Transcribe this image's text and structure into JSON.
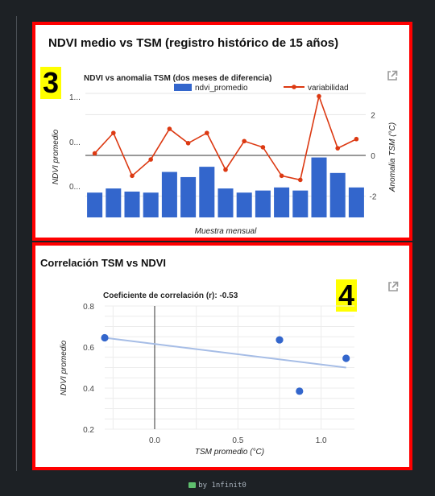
{
  "panel3": {
    "title": "NDVI medio vs TSM (registro histórico de 15 años)",
    "badge": "3"
  },
  "panel4": {
    "title": "Correlación TSM vs NDVI",
    "badge": "4"
  },
  "footer": {
    "text": "by 1nfinit0"
  },
  "colors": {
    "bar": "#3366cc",
    "line": "#dc3912",
    "frame": "#ff0000",
    "trend": "#a6bde6"
  },
  "chart_data": [
    {
      "type": "bar+line",
      "title": "NDVI vs anomalia TSM (dos meses de diferencia)",
      "xlabel": "Muestra mensual",
      "ylabel": "NDVI promedio",
      "y2label": "Anomalia TSM (°C)",
      "left_ticks": [
        "1...",
        "0...",
        "0..."
      ],
      "right_ticks": [
        2,
        0,
        -2
      ],
      "y2lim": [
        -3,
        3
      ],
      "legend_position": "top",
      "series": [
        {
          "name": "ndvi_promedio",
          "kind": "bar",
          "values": [
            0.52,
            0.54,
            0.525,
            0.52,
            0.62,
            0.595,
            0.645,
            0.54,
            0.52,
            0.53,
            0.545,
            0.53,
            0.69,
            0.615,
            0.545
          ]
        },
        {
          "name": "variabilidad",
          "kind": "line",
          "values": [
            0.1,
            1.1,
            -1.0,
            -0.2,
            1.3,
            0.6,
            1.1,
            -0.7,
            0.7,
            0.4,
            -1.0,
            -1.2,
            2.9,
            0.35,
            0.8
          ]
        }
      ]
    },
    {
      "type": "scatter",
      "title": "Coeficiente de correlación (r): -0.53",
      "xlabel": "TSM promedio (°C)",
      "ylabel": "NDVI promedio",
      "xticks": [
        "0.0",
        "0.5",
        "1.0"
      ],
      "yticks": [
        "0.8",
        "0.6",
        "0.4",
        "0.2"
      ],
      "xlim": [
        -0.3,
        1.2
      ],
      "ylim": [
        0.2,
        0.8
      ],
      "points": [
        {
          "x": -0.3,
          "y": 0.645
        },
        {
          "x": 0.75,
          "y": 0.635
        },
        {
          "x": 0.87,
          "y": 0.385
        },
        {
          "x": 1.15,
          "y": 0.545
        }
      ],
      "trendline": {
        "x": [
          -0.3,
          1.15
        ],
        "y": [
          0.645,
          0.5
        ]
      },
      "grid": true
    }
  ]
}
